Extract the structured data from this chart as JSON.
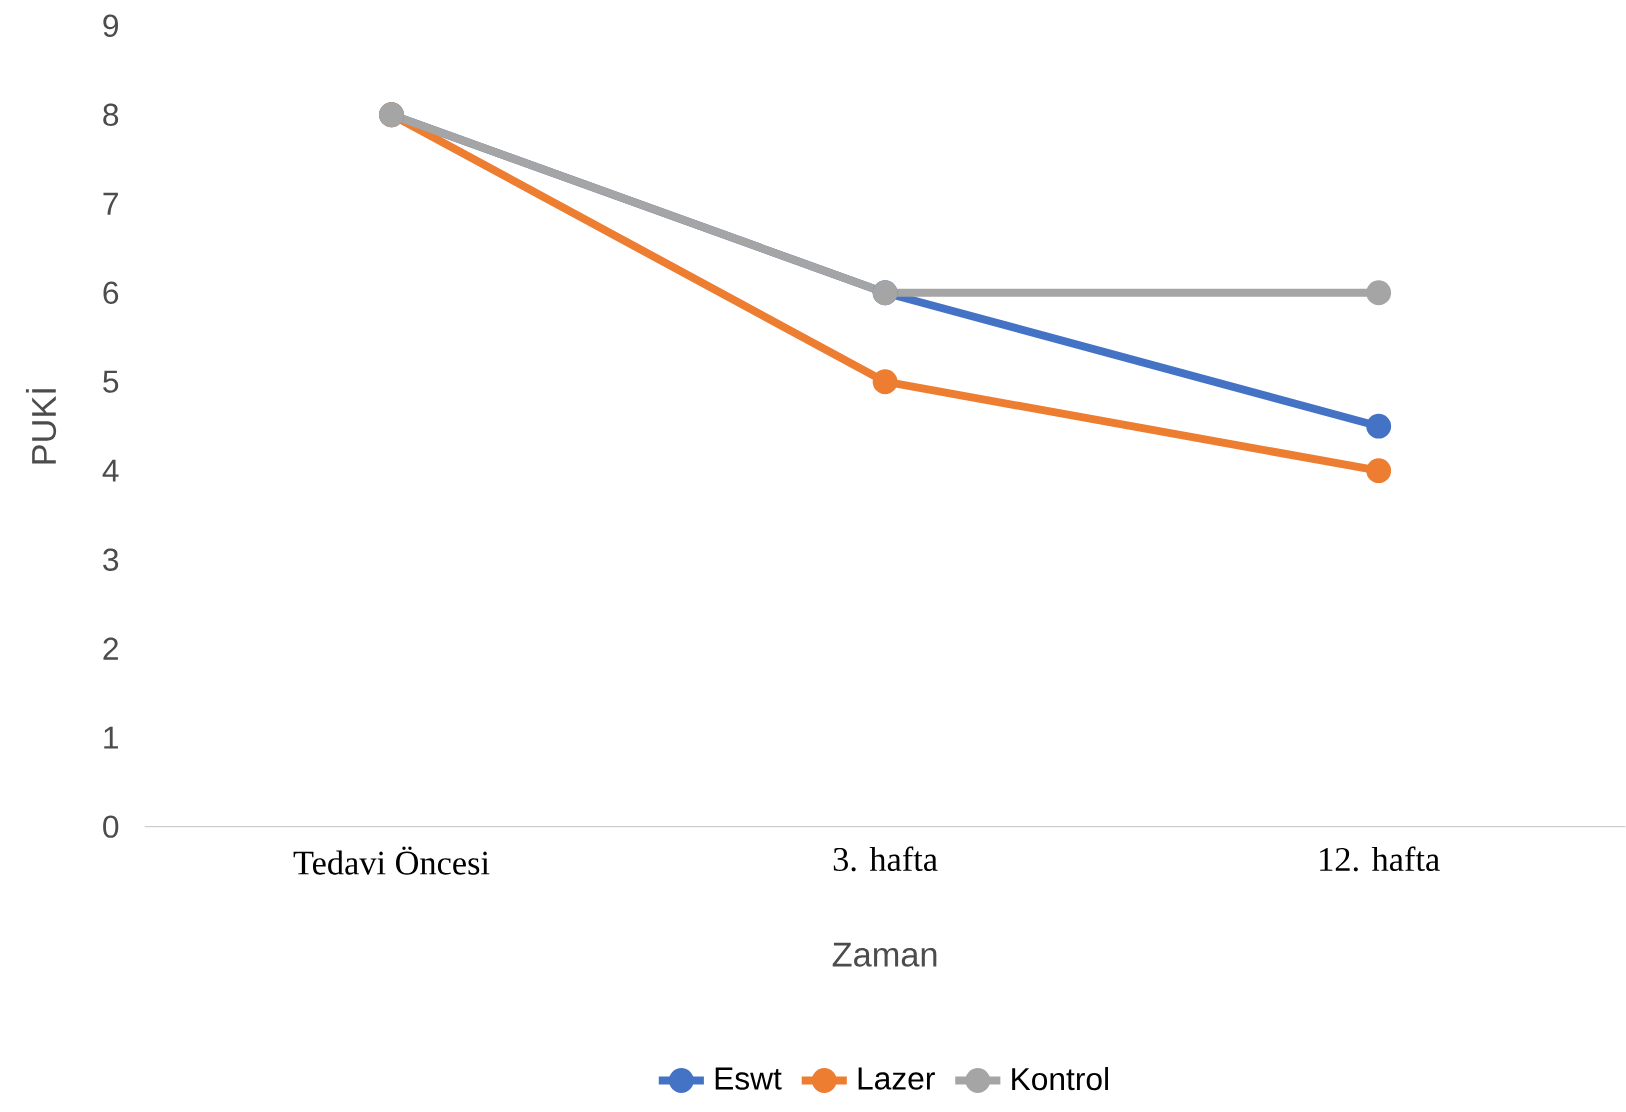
{
  "chart_data": {
    "type": "line",
    "xlabel": "Zaman",
    "ylabel": "PUKİ",
    "categories": [
      "Tedavi Öncesi",
      "3. hafta",
      "12. hafta"
    ],
    "series": [
      {
        "name": "Eswt",
        "color": "#4472c4",
        "values": [
          8,
          6,
          4.5
        ]
      },
      {
        "name": "Lazer",
        "color": "#ed7d31",
        "values": [
          8,
          5,
          4
        ]
      },
      {
        "name": "Kontrol",
        "color": "#a5a5a5",
        "values": [
          8,
          6,
          6
        ]
      }
    ],
    "ylim": [
      0,
      9
    ],
    "yticks": [
      0,
      1,
      2,
      3,
      4,
      5,
      6,
      7,
      8,
      9
    ],
    "legend": "bottom",
    "marker": "circle",
    "line_style": "solid",
    "grid": false
  }
}
